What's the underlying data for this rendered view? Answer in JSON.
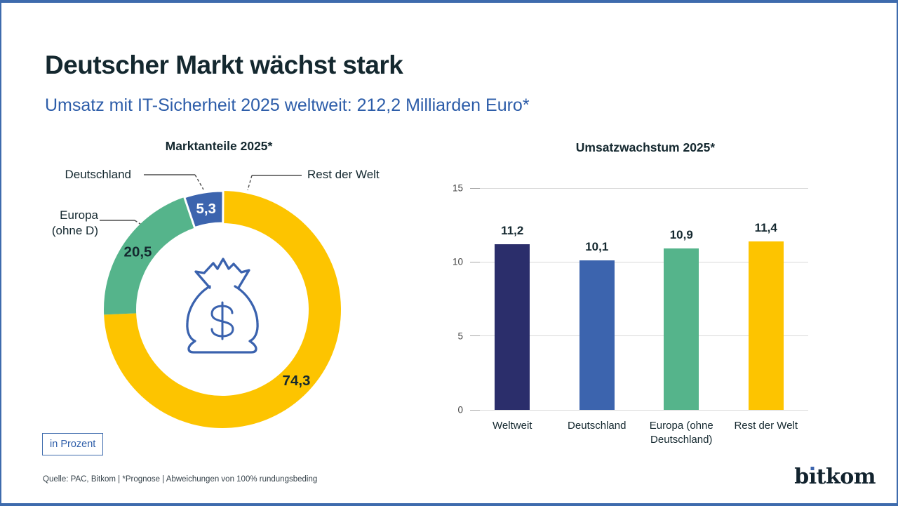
{
  "frame": {
    "border_color": "#3e6bad",
    "background": "#ffffff"
  },
  "header": {
    "title": "Deutscher Markt wächst stark",
    "subtitle": "Umsatz mit IT-Sicherheit 2025 weltweit: 212,2 Milliarden Euro*",
    "title_color": "#14282f",
    "subtitle_color": "#2d5da9"
  },
  "chart_data": [
    {
      "type": "pie",
      "donut": true,
      "title": "Marktanteile 2025*",
      "unit": "Prozent",
      "center_icon": "money-bag-dollar-icon",
      "slices": [
        {
          "label": "Rest der Welt",
          "value": 74.3,
          "display": "74,3",
          "color": "#fdc400",
          "text_color": "#14282f"
        },
        {
          "label": "Europa (ohne D)",
          "callout_lines": [
            "Europa",
            "(ohne D)"
          ],
          "value": 20.5,
          "display": "20,5",
          "color": "#55b48b",
          "text_color": "#14282f"
        },
        {
          "label": "Deutschland",
          "value": 5.3,
          "display": "5,3",
          "color": "#3c64ae",
          "text_color": "#ffffff",
          "gap": true
        }
      ]
    },
    {
      "type": "bar",
      "title": "Umsatzwachstum 2025*",
      "categories": [
        "Weltweit",
        "Deutschland",
        "Europa (ohne Deutschland)",
        "Rest der Welt"
      ],
      "category_lines": [
        [
          "Weltweit"
        ],
        [
          "Deutschland"
        ],
        [
          "Europa (ohne",
          "Deutschland)"
        ],
        [
          "Rest der Welt"
        ]
      ],
      "values": [
        11.2,
        10.1,
        10.9,
        11.4
      ],
      "value_labels": [
        "11,2",
        "10,1",
        "10,9",
        "11,4"
      ],
      "colors": [
        "#2b2e6b",
        "#3c64ae",
        "#55b48b",
        "#fdc400"
      ],
      "ylim": [
        0,
        15
      ],
      "y_ticks": [
        0,
        5,
        10,
        15
      ],
      "y_tick_labels": [
        "0",
        "5",
        "10",
        "15"
      ],
      "grid": true,
      "xlabel": "",
      "ylabel": ""
    }
  ],
  "footer": {
    "unit_box_label": "in Prozent",
    "source_line": "Quelle: PAC, Bitkom | *Prognose | Abweichungen von 100% rundungsbeding",
    "logo_part1": "b",
    "logo_i": "ı",
    "logo_part2": "tkom"
  }
}
